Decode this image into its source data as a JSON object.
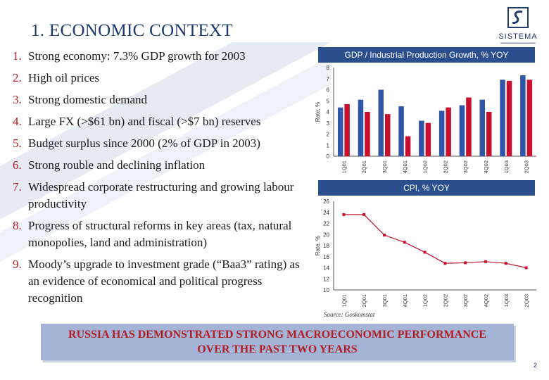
{
  "slide": {
    "title": "1. ECONOMIC CONTEXT",
    "logo_text": "SISTEMA",
    "page_number": "2",
    "source": "Source: Goskomstat",
    "banner_line1": "RUSSIA HAS DEMONSTRATED STRONG MACROECONOMIC PERFORMANCE",
    "banner_line2": "OVER THE PAST TWO YEARS"
  },
  "bullets": [
    {
      "num": "1.",
      "text": "Strong economy: 7.3% GDP growth for 2003"
    },
    {
      "num": "2.",
      "text": "High oil prices"
    },
    {
      "num": "3.",
      "text": "Strong domestic demand"
    },
    {
      "num": "4.",
      "text": "Large FX (>$61 bn) and fiscal (>$7 bn) reserves"
    },
    {
      "num": "5.",
      "text": "Budget surplus since 2000 (2% of GDP in 2003)"
    },
    {
      "num": "6.",
      "text": "Strong rouble and declining inflation"
    },
    {
      "num": "7.",
      "text": "Widespread corporate restructuring and growing labour productivity"
    },
    {
      "num": "8.",
      "text": "Progress of structural reforms in key areas (tax, natural monopolies, land and administration)"
    },
    {
      "num": "9.",
      "text": "Moody’s upgrade to investment grade (“Baa3” rating) as an evidence of economical and political progress recognition"
    }
  ],
  "colors": {
    "bar_gdp": "#2f56a6",
    "bar_ip": "#c8102e",
    "line_cpi": "#c8102e",
    "header_bg": "#2a4f8c",
    "banner_bg": "#a3b4d6"
  },
  "chart_data": [
    {
      "type": "bar",
      "title": "GDP / Industrial Production Growth, % YOY",
      "ylabel": "Rate, %",
      "ylim": [
        0,
        8
      ],
      "yticks": [
        0,
        1,
        2,
        3,
        4,
        5,
        6,
        7,
        8
      ],
      "categories": [
        "1Q01",
        "2Q01",
        "3Q01",
        "4Q01",
        "1Q02",
        "2Q02",
        "3Q02",
        "4Q02",
        "1Q03",
        "2Q03"
      ],
      "series": [
        {
          "values": [
            4.4,
            5.1,
            6.0,
            4.5,
            3.2,
            4.1,
            4.6,
            5.1,
            6.9,
            7.3
          ]
        },
        {
          "values": [
            4.7,
            4.0,
            3.8,
            1.8,
            3.0,
            4.4,
            5.3,
            4.0,
            6.8,
            6.9
          ]
        }
      ]
    },
    {
      "type": "line",
      "title": "CPI, % YOY",
      "ylabel": "Rate, %",
      "ylim": [
        10,
        26
      ],
      "yticks": [
        10,
        12,
        14,
        16,
        18,
        20,
        22,
        24,
        26
      ],
      "categories": [
        "1Q01",
        "2Q01",
        "3Q01",
        "4Q01",
        "1Q02",
        "2Q02",
        "3Q02",
        "4Q02",
        "1Q03",
        "2Q03"
      ],
      "series": [
        {
          "values": [
            23.6,
            23.6,
            19.9,
            18.6,
            16.8,
            14.8,
            14.9,
            15.1,
            14.8,
            14.0
          ]
        }
      ]
    }
  ]
}
